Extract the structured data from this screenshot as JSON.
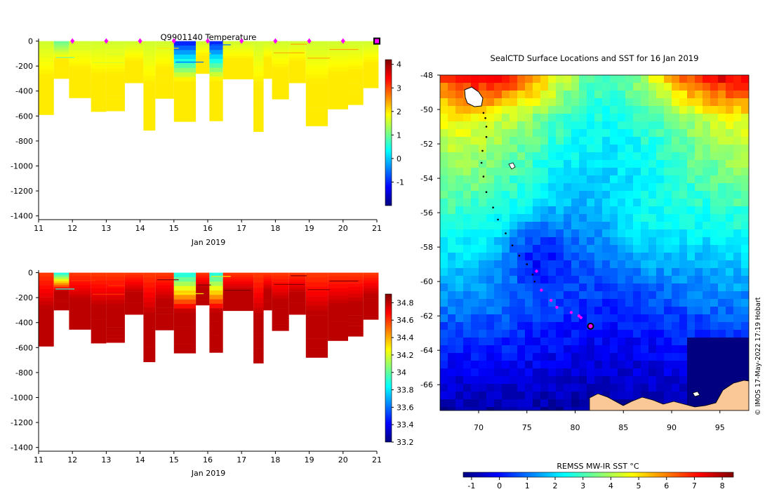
{
  "page_title": "Q9901140 Temperature",
  "colors": {
    "jet": [
      "#000080",
      "#0000ff",
      "#0080ff",
      "#00ffff",
      "#80ff80",
      "#ffff00",
      "#ff8000",
      "#ff0000",
      "#800000"
    ],
    "surface_marker": "#ff00ff",
    "land": "#f9c896"
  },
  "chart_data": [
    {
      "id": "temperature_profile",
      "type": "heatmap",
      "title": "Q9901140  Temperature",
      "xlabel": "Jan 2019",
      "x_ticks": [
        11,
        12,
        13,
        14,
        15,
        16,
        17,
        18,
        19,
        20,
        21
      ],
      "xlim": [
        11,
        21
      ],
      "y_ticks": [
        0,
        -200,
        -400,
        -600,
        -800,
        -1000,
        -1200,
        -1400
      ],
      "ylim": [
        -1430,
        20
      ],
      "colorbar": {
        "min": -2,
        "max": 4.2,
        "ticks": [
          4,
          3,
          2,
          1,
          0,
          -1
        ],
        "tick_labels": [
          "4",
          "3",
          "2",
          "1",
          "0",
          "-1"
        ]
      },
      "surface_markers": [
        12,
        13,
        14,
        15,
        16,
        17,
        18,
        19,
        20
      ],
      "current_marker": 21,
      "profiles": [
        {
          "t": 11.0,
          "depth": 590,
          "near_surface": 1.6,
          "deep": 2.0
        },
        {
          "t": 11.45,
          "depth": 300,
          "near_surface": 1.0,
          "deep": 2.0
        },
        {
          "t": 11.9,
          "depth": 455,
          "near_surface": 1.6,
          "deep": 2.0
        },
        {
          "t": 12.55,
          "depth": 565,
          "near_surface": 1.6,
          "deep": 2.0
        },
        {
          "t": 13.0,
          "depth": 560,
          "near_surface": 1.6,
          "deep": 2.0
        },
        {
          "t": 13.55,
          "depth": 335,
          "near_surface": 1.6,
          "deep": 2.0
        },
        {
          "t": 14.1,
          "depth": 715,
          "near_surface": 1.6,
          "deep": 2.0
        },
        {
          "t": 14.45,
          "depth": 460,
          "near_surface": 1.6,
          "deep": 2.0
        },
        {
          "t": 15.0,
          "depth": 645,
          "near_surface": -1.0,
          "deep": 2.0
        },
        {
          "t": 15.65,
          "depth": 260,
          "near_surface": 1.6,
          "deep": 2.0
        },
        {
          "t": 16.05,
          "depth": 640,
          "near_surface": -1.0,
          "deep": 2.0
        },
        {
          "t": 16.45,
          "depth": 305,
          "near_surface": 1.6,
          "deep": 2.0
        },
        {
          "t": 17.35,
          "depth": 725,
          "near_surface": 1.6,
          "deep": 2.0
        },
        {
          "t": 17.65,
          "depth": 300,
          "near_surface": 1.6,
          "deep": 2.0
        },
        {
          "t": 17.9,
          "depth": 465,
          "near_surface": 1.6,
          "deep": 2.0
        },
        {
          "t": 18.4,
          "depth": 335,
          "near_surface": 1.6,
          "deep": 2.0
        },
        {
          "t": 18.9,
          "depth": 680,
          "near_surface": 1.6,
          "deep": 2.0
        },
        {
          "t": 19.55,
          "depth": 545,
          "near_surface": 1.6,
          "deep": 2.0
        },
        {
          "t": 20.15,
          "depth": 510,
          "near_surface": 1.6,
          "deep": 2.0
        },
        {
          "t": 20.6,
          "depth": 375,
          "near_surface": 1.6,
          "deep": 2.0
        }
      ]
    },
    {
      "id": "salinity_profile",
      "type": "heatmap",
      "title": "",
      "xlabel": "Jan 2019",
      "x_ticks": [
        11,
        12,
        13,
        14,
        15,
        16,
        17,
        18,
        19,
        20,
        21
      ],
      "xlim": [
        11,
        21
      ],
      "y_ticks": [
        0,
        -200,
        -400,
        -600,
        -800,
        -1000,
        -1200,
        -1400
      ],
      "ylim": [
        -1430,
        20
      ],
      "colorbar": {
        "min": 33.2,
        "max": 34.9,
        "ticks": [
          34.8,
          34.6,
          34.4,
          34.2,
          34,
          33.8,
          33.6,
          33.4,
          33.2
        ],
        "tick_labels": [
          "34.8",
          "34.6",
          "34.4",
          "34.2",
          "34",
          "33.8",
          "33.6",
          "33.4",
          "33.2"
        ]
      },
      "profiles": [
        {
          "t": 11.0,
          "depth": 590,
          "near_surface": 34.6,
          "deep": 34.8
        },
        {
          "t": 11.45,
          "depth": 300,
          "near_surface": 33.9,
          "deep": 34.8
        },
        {
          "t": 11.9,
          "depth": 455,
          "near_surface": 34.6,
          "deep": 34.8
        },
        {
          "t": 12.55,
          "depth": 565,
          "near_surface": 34.6,
          "deep": 34.8
        },
        {
          "t": 13.0,
          "depth": 560,
          "near_surface": 34.6,
          "deep": 34.8
        },
        {
          "t": 13.55,
          "depth": 335,
          "near_surface": 34.6,
          "deep": 34.8
        },
        {
          "t": 14.1,
          "depth": 715,
          "near_surface": 34.6,
          "deep": 34.8
        },
        {
          "t": 14.45,
          "depth": 460,
          "near_surface": 34.6,
          "deep": 34.8
        },
        {
          "t": 15.0,
          "depth": 645,
          "near_surface": 33.9,
          "deep": 34.8
        },
        {
          "t": 15.65,
          "depth": 260,
          "near_surface": 34.6,
          "deep": 34.8
        },
        {
          "t": 16.05,
          "depth": 640,
          "near_surface": 33.9,
          "deep": 34.8
        },
        {
          "t": 16.45,
          "depth": 305,
          "near_surface": 34.6,
          "deep": 34.8
        },
        {
          "t": 17.35,
          "depth": 725,
          "near_surface": 34.6,
          "deep": 34.8
        },
        {
          "t": 17.65,
          "depth": 300,
          "near_surface": 34.6,
          "deep": 34.8
        },
        {
          "t": 17.9,
          "depth": 465,
          "near_surface": 34.6,
          "deep": 34.8
        },
        {
          "t": 18.4,
          "depth": 335,
          "near_surface": 34.6,
          "deep": 34.8
        },
        {
          "t": 18.9,
          "depth": 680,
          "near_surface": 34.6,
          "deep": 34.8
        },
        {
          "t": 19.55,
          "depth": 545,
          "near_surface": 34.6,
          "deep": 34.8
        },
        {
          "t": 20.15,
          "depth": 510,
          "near_surface": 34.6,
          "deep": 34.8
        },
        {
          "t": 20.6,
          "depth": 375,
          "near_surface": 34.6,
          "deep": 34.8
        }
      ]
    },
    {
      "id": "sst_map",
      "type": "heatmap",
      "title": "SealCTD Surface Locations and SST for 16 Jan 2019",
      "colorbar_label": "REMSS MW-IR SST °C",
      "lon_ticks": [
        70,
        75,
        80,
        85,
        90,
        95
      ],
      "lat_ticks": [
        -48,
        -50,
        -52,
        -54,
        -56,
        -58,
        -60,
        -62,
        -64,
        -66
      ],
      "lonlim": [
        66,
        98
      ],
      "latlim": [
        -67.5,
        -48
      ],
      "colorbar": {
        "min": -1.3,
        "max": 8.4,
        "ticks": [
          -1,
          0,
          1,
          2,
          3,
          4,
          5,
          6,
          7,
          8
        ],
        "tick_labels": [
          "-1",
          "0",
          "1",
          "2",
          "3",
          "4",
          "5",
          "6",
          "7",
          "8"
        ]
      },
      "track": [
        {
          "lon": 70.5,
          "lat": -50.2
        },
        {
          "lon": 70.7,
          "lat": -50.5
        },
        {
          "lon": 70.8,
          "lat": -51.0
        },
        {
          "lon": 70.8,
          "lat": -51.6
        },
        {
          "lon": 70.4,
          "lat": -52.4
        },
        {
          "lon": 70.3,
          "lat": -53.1
        },
        {
          "lon": 70.5,
          "lat": -53.9
        },
        {
          "lon": 70.8,
          "lat": -54.8
        },
        {
          "lon": 71.5,
          "lat": -55.7
        },
        {
          "lon": 72.0,
          "lat": -56.4
        },
        {
          "lon": 72.8,
          "lat": -57.2
        },
        {
          "lon": 73.5,
          "lat": -57.9
        },
        {
          "lon": 74.2,
          "lat": -58.5
        },
        {
          "lon": 75.0,
          "lat": -59.0
        },
        {
          "lon": 75.6,
          "lat": -59.6
        },
        {
          "lon": 75.8,
          "lat": -60.0
        }
      ],
      "surfacings": [
        {
          "lon": 76.0,
          "lat": -59.4
        },
        {
          "lon": 76.5,
          "lat": -60.5
        },
        {
          "lon": 77.5,
          "lat": -61.1
        },
        {
          "lon": 78.1,
          "lat": -61.5
        },
        {
          "lon": 79.6,
          "lat": -61.8
        },
        {
          "lon": 80.4,
          "lat": -62.0
        },
        {
          "lon": 80.6,
          "lat": -62.1
        }
      ],
      "latest": {
        "lon": 81.6,
        "lat": -62.6
      }
    }
  ],
  "watermark": "© IMOS 17-May-2022 17:19 Hobart"
}
